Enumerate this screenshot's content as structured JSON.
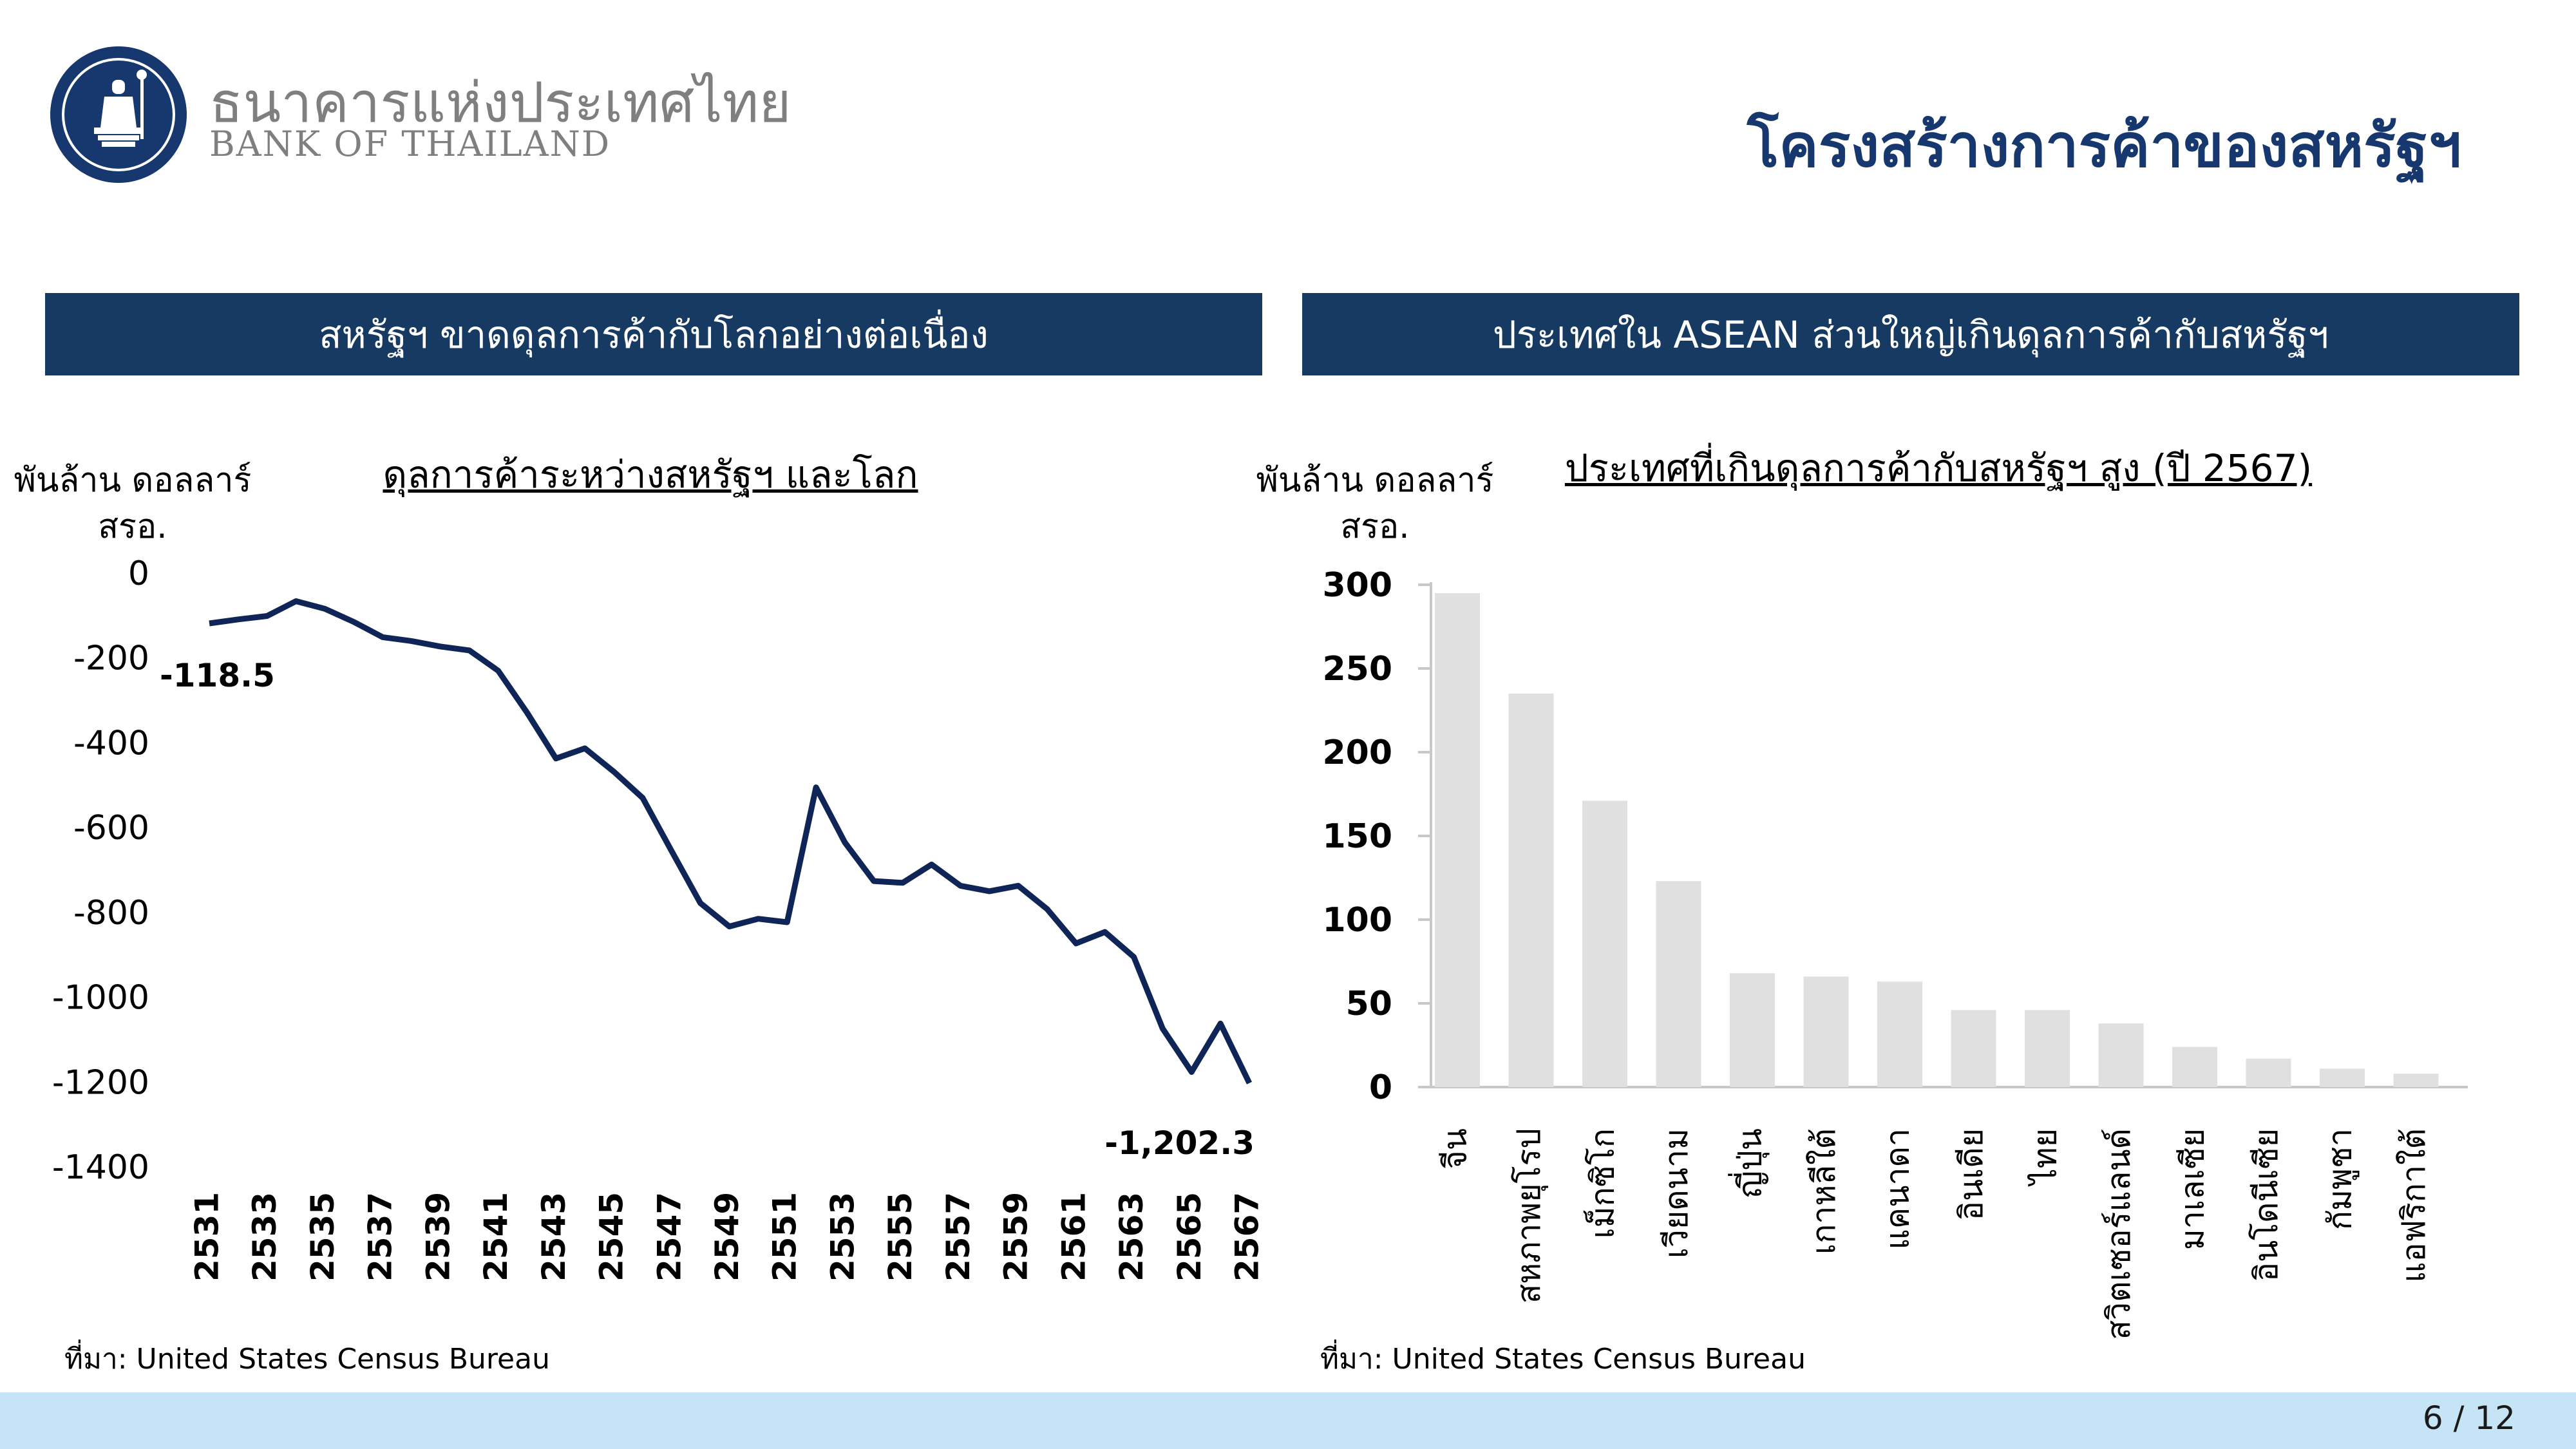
{
  "header": {
    "bank_name_th": "ธนาคารแห่งประเทศไทย",
    "bank_name_en": "BANK OF THAILAND",
    "slide_title": "โครงสร้างการค้าของสหรัฐฯ",
    "logo_icon": "bank-of-thailand-seal-icon",
    "brand_color": "#16386e"
  },
  "left_panel": {
    "banner": "สหรัฐฯ ขาดดุลการค้ากับโลกอย่างต่อเนื่อง",
    "unit": "พันล้าน ดอลลาร์ สรอ.",
    "source": "ที่มา: United States Census Bureau"
  },
  "right_panel": {
    "banner": "ประเทศใน ASEAN ส่วนใหญ่เกินดุลการค้ากับสหรัฐฯ",
    "unit": "พันล้าน ดอลลาร์ สรอ.",
    "source": "ที่มา: United States Census Bureau"
  },
  "footer": {
    "page": "6 / 12",
    "bar_color": "#c5e4f5"
  },
  "chart_data": [
    {
      "type": "line",
      "title": "ดุลการค้าระหว่างสหรัฐฯ และโลก",
      "ylabel": "พันล้าน ดอลลาร์ สรอ.",
      "ylim": [
        -1400,
        0
      ],
      "yticks": [
        "0",
        "-200",
        "-400",
        "-600",
        "-800",
        "-1000",
        "-1200",
        "-1400"
      ],
      "x": [
        2531,
        2532,
        2533,
        2534,
        2535,
        2536,
        2537,
        2538,
        2539,
        2540,
        2541,
        2542,
        2543,
        2544,
        2545,
        2546,
        2547,
        2548,
        2549,
        2550,
        2551,
        2552,
        2553,
        2554,
        2555,
        2556,
        2557,
        2558,
        2559,
        2560,
        2561,
        2562,
        2563,
        2564,
        2565,
        2566,
        2567
      ],
      "xtick_labels": [
        "2531",
        "2533",
        "2535",
        "2537",
        "2539",
        "2541",
        "2543",
        "2545",
        "2547",
        "2549",
        "2551",
        "2553",
        "2555",
        "2557",
        "2559",
        "2561",
        "2563",
        "2565",
        "2567"
      ],
      "values": [
        -118.5,
        -109,
        -101,
        -66,
        -84,
        -115,
        -151,
        -160,
        -173,
        -182,
        -230,
        -329,
        -437,
        -413,
        -468,
        -530,
        -655,
        -778,
        -833,
        -815,
        -823,
        -505,
        -635,
        -726,
        -730,
        -687,
        -737,
        -750,
        -737,
        -792,
        -873,
        -846,
        -905,
        -1074,
        -1176,
        -1062,
        -1202.3
      ],
      "annotations": [
        {
          "x": 2531,
          "text": "-118.5"
        },
        {
          "x": 2567,
          "text": "-1,202.3"
        }
      ],
      "line_color": "#0f2557",
      "grid": false
    },
    {
      "type": "bar",
      "title": "ประเทศที่เกินดุลการค้ากับสหรัฐฯ สูง (ปี 2567)",
      "ylabel": "พันล้าน ดอลลาร์ สรอ.",
      "ylim": [
        0,
        300
      ],
      "yticks": [
        "300",
        "250",
        "200",
        "150",
        "100",
        "50",
        "0"
      ],
      "categories": [
        "จีน",
        "สหภาพยุโรป",
        "เม็กซิโก",
        "เวียดนาม",
        "ญี่ปุ่น",
        "เกาหลีใต้",
        "แคนาดา",
        "อินเดีย",
        "ไทย",
        "สวิตเซอร์แลนด์",
        "มาเลเซีย",
        "อินโดนีเซีย",
        "กัมพูชา",
        "แอฟริกาใต้"
      ],
      "values": [
        295,
        235,
        171,
        123,
        68,
        66,
        63,
        46,
        46,
        38,
        24,
        17,
        11,
        8
      ],
      "bar_color": "#e0e0e0",
      "grid": false
    }
  ]
}
